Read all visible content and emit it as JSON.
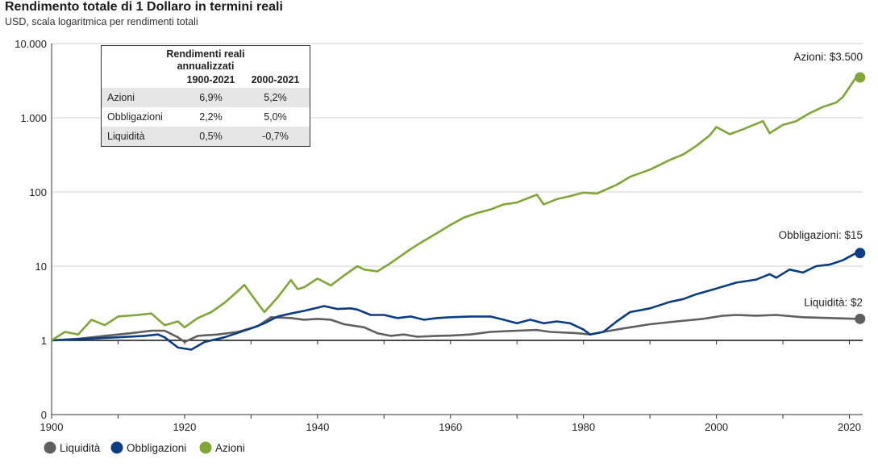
{
  "header": {
    "title": "Rendimento totale di 1 Dollaro in termini reali",
    "subtitle": "USD, scala logaritmica per rendimenti totali"
  },
  "table": {
    "title_line1": "Rendimenti reali",
    "title_line2": "annualizzati",
    "col1": "1900-2021",
    "col2": "2000-2021",
    "rows": [
      {
        "label": "Azioni",
        "v1": "6,9%",
        "v2": "5,2%"
      },
      {
        "label": "Obbligazioni",
        "v1": "2,2%",
        "v2": "5,0%"
      },
      {
        "label": "Liquidità",
        "v1": "0,5%",
        "v2": "-0,7%"
      }
    ]
  },
  "end_labels": {
    "azioni": "Azioni: $3.500",
    "obbligazioni": "Obbligazioni: $15",
    "liquidita": "Liquidità: $2"
  },
  "chart_data": {
    "type": "line",
    "title": "Rendimento totale di 1 Dollaro in termini reali",
    "subtitle": "USD, scala logaritmica per rendimenti totali",
    "xlabel": "",
    "ylabel": "",
    "xlim": [
      1900,
      2022
    ],
    "ylim": [
      0.1,
      10000
    ],
    "y_scale": "log",
    "y_ticks": [
      0.1,
      1,
      10,
      100,
      1000,
      10000
    ],
    "y_tick_labels": [
      "0",
      "1",
      "10",
      "100",
      "1.000",
      "10.000"
    ],
    "x_ticks": [
      1900,
      1920,
      1940,
      1960,
      1980,
      2000,
      2020
    ],
    "x_tick_labels": [
      "1900",
      "1920",
      "1940",
      "1960",
      "1980",
      "2000",
      "2020"
    ],
    "grid": "horizontal",
    "legend_position": "bottom-left",
    "series": [
      {
        "name": "Liquidità",
        "color": "#5f5f5f",
        "points": [
          [
            1900,
            1
          ],
          [
            1904,
            1.05
          ],
          [
            1908,
            1.15
          ],
          [
            1912,
            1.25
          ],
          [
            1915,
            1.35
          ],
          [
            1917,
            1.35
          ],
          [
            1919,
            1.1
          ],
          [
            1920,
            0.95
          ],
          [
            1922,
            1.15
          ],
          [
            1925,
            1.2
          ],
          [
            1928,
            1.3
          ],
          [
            1931,
            1.55
          ],
          [
            1933,
            2.05
          ],
          [
            1936,
            2.0
          ],
          [
            1938,
            1.9
          ],
          [
            1940,
            1.95
          ],
          [
            1942,
            1.9
          ],
          [
            1944,
            1.65
          ],
          [
            1947,
            1.5
          ],
          [
            1949,
            1.25
          ],
          [
            1951,
            1.15
          ],
          [
            1953,
            1.2
          ],
          [
            1955,
            1.12
          ],
          [
            1958,
            1.15
          ],
          [
            1960,
            1.16
          ],
          [
            1963,
            1.2
          ],
          [
            1966,
            1.3
          ],
          [
            1970,
            1.35
          ],
          [
            1973,
            1.38
          ],
          [
            1975,
            1.3
          ],
          [
            1979,
            1.25
          ],
          [
            1981,
            1.2
          ],
          [
            1983,
            1.3
          ],
          [
            1986,
            1.45
          ],
          [
            1990,
            1.65
          ],
          [
            1994,
            1.8
          ],
          [
            1998,
            1.95
          ],
          [
            2001,
            2.15
          ],
          [
            2003,
            2.2
          ],
          [
            2006,
            2.15
          ],
          [
            2009,
            2.2
          ],
          [
            2013,
            2.05
          ],
          [
            2017,
            2.0
          ],
          [
            2021,
            1.95
          ]
        ]
      },
      {
        "name": "Obbligazioni",
        "color": "#0b3d84",
        "points": [
          [
            1900,
            1
          ],
          [
            1905,
            1.05
          ],
          [
            1910,
            1.1
          ],
          [
            1914,
            1.15
          ],
          [
            1916,
            1.2
          ],
          [
            1917,
            1.1
          ],
          [
            1919,
            0.8
          ],
          [
            1921,
            0.75
          ],
          [
            1923,
            0.95
          ],
          [
            1926,
            1.1
          ],
          [
            1930,
            1.45
          ],
          [
            1932,
            1.7
          ],
          [
            1934,
            2.1
          ],
          [
            1936,
            2.3
          ],
          [
            1938,
            2.5
          ],
          [
            1941,
            2.9
          ],
          [
            1943,
            2.65
          ],
          [
            1945,
            2.7
          ],
          [
            1946,
            2.6
          ],
          [
            1948,
            2.2
          ],
          [
            1950,
            2.2
          ],
          [
            1952,
            2.0
          ],
          [
            1954,
            2.1
          ],
          [
            1956,
            1.9
          ],
          [
            1958,
            2.0
          ],
          [
            1960,
            2.05
          ],
          [
            1963,
            2.1
          ],
          [
            1966,
            2.1
          ],
          [
            1968,
            1.9
          ],
          [
            1970,
            1.7
          ],
          [
            1972,
            1.9
          ],
          [
            1974,
            1.7
          ],
          [
            1976,
            1.8
          ],
          [
            1978,
            1.7
          ],
          [
            1980,
            1.4
          ],
          [
            1981,
            1.2
          ],
          [
            1983,
            1.3
          ],
          [
            1985,
            1.8
          ],
          [
            1987,
            2.4
          ],
          [
            1990,
            2.7
          ],
          [
            1993,
            3.3
          ],
          [
            1995,
            3.6
          ],
          [
            1997,
            4.2
          ],
          [
            2000,
            5.0
          ],
          [
            2003,
            6.0
          ],
          [
            2006,
            6.6
          ],
          [
            2008,
            7.8
          ],
          [
            2009,
            7.0
          ],
          [
            2011,
            9.0
          ],
          [
            2013,
            8.2
          ],
          [
            2015,
            10.0
          ],
          [
            2017,
            10.5
          ],
          [
            2019,
            12.0
          ],
          [
            2021,
            15.0
          ]
        ]
      },
      {
        "name": "Azioni",
        "color": "#80a637",
        "points": [
          [
            1900,
            1
          ],
          [
            1902,
            1.3
          ],
          [
            1904,
            1.2
          ],
          [
            1906,
            1.9
          ],
          [
            1908,
            1.6
          ],
          [
            1910,
            2.1
          ],
          [
            1913,
            2.2
          ],
          [
            1915,
            2.3
          ],
          [
            1917,
            1.6
          ],
          [
            1919,
            1.8
          ],
          [
            1920,
            1.5
          ],
          [
            1922,
            2.0
          ],
          [
            1924,
            2.4
          ],
          [
            1926,
            3.2
          ],
          [
            1928,
            4.6
          ],
          [
            1929,
            5.6
          ],
          [
            1930,
            4.2
          ],
          [
            1932,
            2.4
          ],
          [
            1934,
            3.8
          ],
          [
            1936,
            6.5
          ],
          [
            1937,
            4.9
          ],
          [
            1938,
            5.2
          ],
          [
            1940,
            6.8
          ],
          [
            1942,
            5.5
          ],
          [
            1944,
            7.5
          ],
          [
            1946,
            10.0
          ],
          [
            1947,
            9.0
          ],
          [
            1949,
            8.5
          ],
          [
            1951,
            11.0
          ],
          [
            1954,
            17.0
          ],
          [
            1956,
            22.0
          ],
          [
            1958,
            28.0
          ],
          [
            1960,
            36.0
          ],
          [
            1962,
            45.0
          ],
          [
            1964,
            52.0
          ],
          [
            1966,
            58.0
          ],
          [
            1968,
            68.0
          ],
          [
            1970,
            72.0
          ],
          [
            1972,
            85.0
          ],
          [
            1973,
            92.0
          ],
          [
            1974,
            68.0
          ],
          [
            1976,
            80.0
          ],
          [
            1978,
            88.0
          ],
          [
            1980,
            98.0
          ],
          [
            1982,
            95.0
          ],
          [
            1985,
            125.0
          ],
          [
            1987,
            160.0
          ],
          [
            1990,
            200.0
          ],
          [
            1993,
            270.0
          ],
          [
            1995,
            320.0
          ],
          [
            1997,
            420.0
          ],
          [
            1999,
            580.0
          ],
          [
            2000,
            750.0
          ],
          [
            2002,
            600.0
          ],
          [
            2004,
            700.0
          ],
          [
            2007,
            900.0
          ],
          [
            2008,
            620.0
          ],
          [
            2010,
            800.0
          ],
          [
            2012,
            900.0
          ],
          [
            2014,
            1150.0
          ],
          [
            2016,
            1400.0
          ],
          [
            2018,
            1600.0
          ],
          [
            2019,
            1900.0
          ],
          [
            2021,
            3500.0
          ]
        ]
      }
    ]
  },
  "legend": [
    {
      "label": "Liquidità",
      "color": "#5f5f5f"
    },
    {
      "label": "Obbligazioni",
      "color": "#0b3d84"
    },
    {
      "label": "Azioni",
      "color": "#80a637"
    }
  ]
}
